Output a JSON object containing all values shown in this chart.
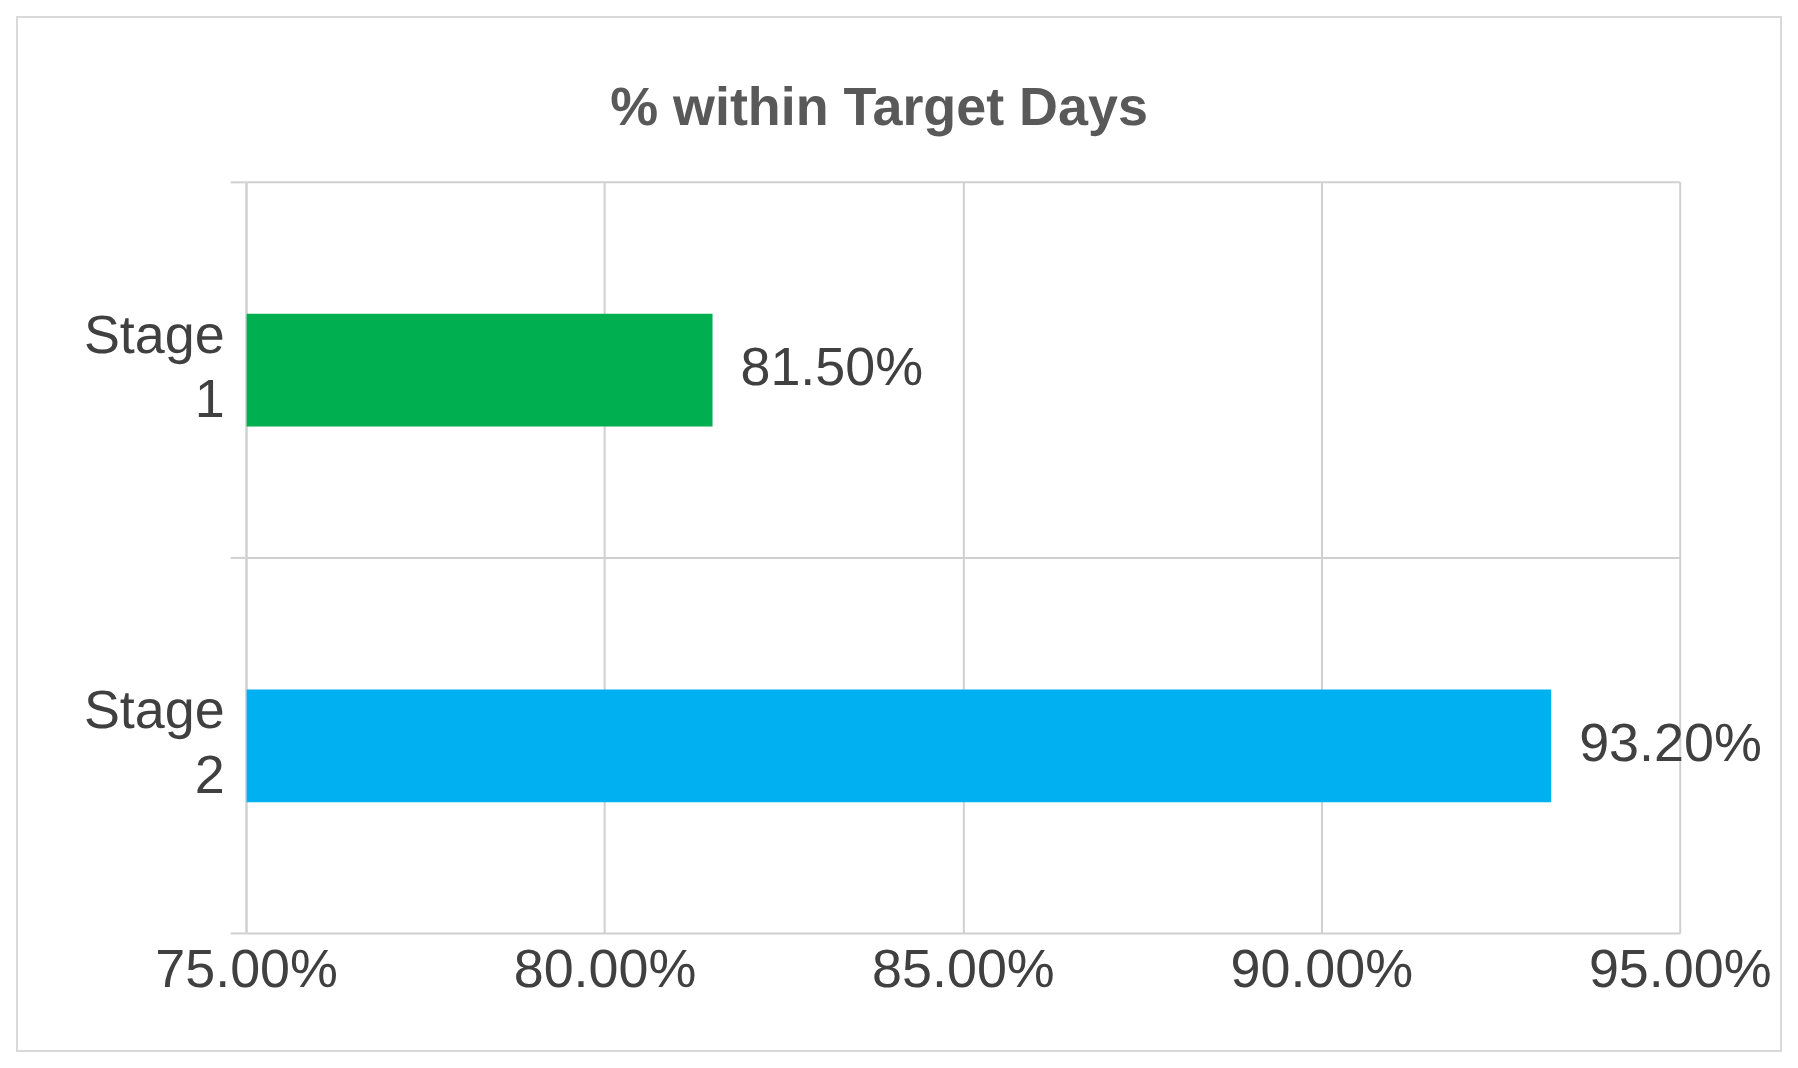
{
  "chart_data": {
    "type": "bar",
    "orientation": "horizontal",
    "title": "% within Target Days",
    "categories": [
      "Stage 1",
      "Stage 2"
    ],
    "values": [
      81.5,
      93.2
    ],
    "colors": [
      "#00b050",
      "#00b0f0"
    ],
    "value_labels": [
      "81.50%",
      "93.20%"
    ],
    "xlim": [
      75,
      95
    ],
    "xticks": [
      {
        "value": 75,
        "label": "75.00%"
      },
      {
        "value": 80,
        "label": "80.00%"
      },
      {
        "value": 85,
        "label": "85.00%"
      },
      {
        "value": 90,
        "label": "90.00%"
      },
      {
        "value": 95,
        "label": "95.00%"
      }
    ],
    "grid": true,
    "legend": false
  }
}
